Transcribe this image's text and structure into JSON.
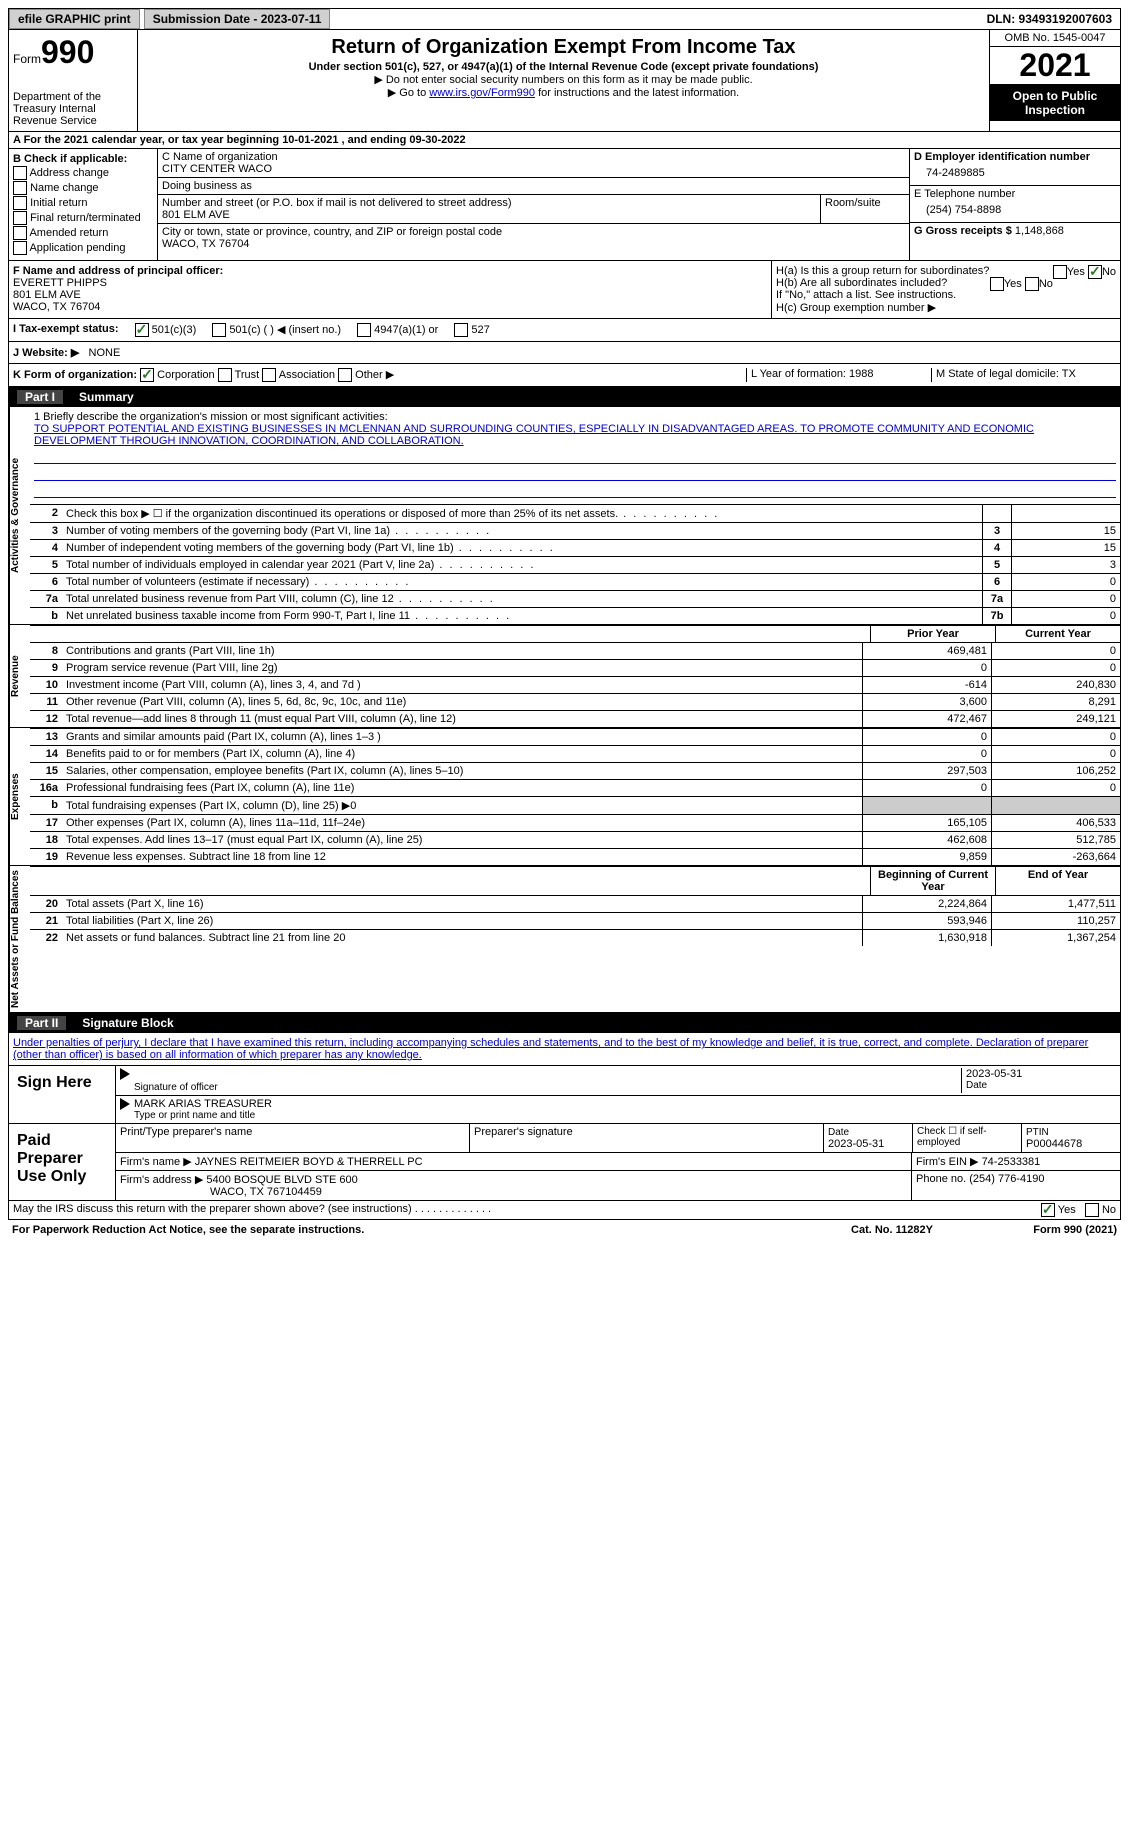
{
  "topbar": {
    "efile": "efile GRAPHIC print",
    "submission": "Submission Date - 2023-07-11",
    "dln": "DLN: 93493192007603"
  },
  "header": {
    "form_prefix": "Form",
    "form_number": "990",
    "dept": "Department of the Treasury Internal Revenue Service",
    "title": "Return of Organization Exempt From Income Tax",
    "subtitle": "Under section 501(c), 527, or 4947(a)(1) of the Internal Revenue Code (except private foundations)",
    "note1": "▶ Do not enter social security numbers on this form as it may be made public.",
    "note2_pre": "▶ Go to ",
    "note2_link": "www.irs.gov/Form990",
    "note2_post": " for instructions and the latest information.",
    "omb": "OMB No. 1545-0047",
    "year": "2021",
    "open": "Open to Public Inspection"
  },
  "row_a": "A For the 2021 calendar year, or tax year beginning 10-01-2021    , and ending 09-30-2022",
  "col_b": {
    "title": "B Check if applicable:",
    "items": [
      "Address change",
      "Name change",
      "Initial return",
      "Final return/terminated",
      "Amended return",
      "Application pending"
    ]
  },
  "col_c": {
    "name_label": "C Name of organization",
    "name": "CITY CENTER WACO",
    "dba_label": "Doing business as",
    "dba": "",
    "addr_label": "Number and street (or P.O. box if mail is not delivered to street address)",
    "addr": "801 ELM AVE",
    "room_label": "Room/suite",
    "city_label": "City or town, state or province, country, and ZIP or foreign postal code",
    "city": "WACO, TX  76704"
  },
  "col_d": {
    "ein_label": "D Employer identification number",
    "ein": "74-2489885",
    "phone_label": "E Telephone number",
    "phone": "(254) 754-8898",
    "gross_label": "G Gross receipts $",
    "gross": "1,148,868"
  },
  "sec_f": {
    "label": "F Name and address of principal officer:",
    "name": "EVERETT PHIPPS",
    "addr1": "801 ELM AVE",
    "addr2": "WACO, TX  76704"
  },
  "sec_h": {
    "ha": "H(a)  Is this a group return for subordinates?",
    "hb": "H(b)  Are all subordinates included?",
    "hb_note": "If \"No,\" attach a list. See instructions.",
    "hc": "H(c)  Group exemption number ▶"
  },
  "tax_status": {
    "label": "I  Tax-exempt status:",
    "opt1": "501(c)(3)",
    "opt2": "501(c) (  ) ◀ (insert no.)",
    "opt3": "4947(a)(1) or",
    "opt4": "527"
  },
  "website": {
    "label": "J  Website: ▶",
    "value": "NONE"
  },
  "row_k": {
    "label": "K Form of organization:",
    "opts": [
      "Corporation",
      "Trust",
      "Association",
      "Other ▶"
    ],
    "l": "L Year of formation: 1988",
    "m": "M State of legal domicile: TX"
  },
  "part1": {
    "num": "Part I",
    "title": "Summary"
  },
  "mission": {
    "q1": "1  Briefly describe the organization's mission or most significant activities:",
    "text": "TO SUPPORT POTENTIAL AND EXISTING BUSINESSES IN MCLENNAN AND SURROUNDING COUNTIES, ESPECIALLY IN DISADVANTAGED AREAS. TO PROMOTE COMMUNITY AND ECONOMIC DEVELOPMENT THROUGH INNOVATION, COORDINATION, AND COLLABORATION."
  },
  "gov_rows": [
    {
      "n": "2",
      "d": "Check this box ▶ ☐ if the organization discontinued its operations or disposed of more than 25% of its net assets.",
      "box": "",
      "v": ""
    },
    {
      "n": "3",
      "d": "Number of voting members of the governing body (Part VI, line 1a)",
      "box": "3",
      "v": "15"
    },
    {
      "n": "4",
      "d": "Number of independent voting members of the governing body (Part VI, line 1b)",
      "box": "4",
      "v": "15"
    },
    {
      "n": "5",
      "d": "Total number of individuals employed in calendar year 2021 (Part V, line 2a)",
      "box": "5",
      "v": "3"
    },
    {
      "n": "6",
      "d": "Total number of volunteers (estimate if necessary)",
      "box": "6",
      "v": "0"
    },
    {
      "n": "7a",
      "d": "Total unrelated business revenue from Part VIII, column (C), line 12",
      "box": "7a",
      "v": "0"
    },
    {
      "n": "b",
      "d": "Net unrelated business taxable income from Form 990-T, Part I, line 11",
      "box": "7b",
      "v": "0"
    }
  ],
  "col_headers": {
    "prior": "Prior Year",
    "current": "Current Year"
  },
  "revenue": {
    "label": "Revenue",
    "rows": [
      {
        "n": "8",
        "d": "Contributions and grants (Part VIII, line 1h)",
        "p": "469,481",
        "c": "0"
      },
      {
        "n": "9",
        "d": "Program service revenue (Part VIII, line 2g)",
        "p": "0",
        "c": "0"
      },
      {
        "n": "10",
        "d": "Investment income (Part VIII, column (A), lines 3, 4, and 7d )",
        "p": "-614",
        "c": "240,830"
      },
      {
        "n": "11",
        "d": "Other revenue (Part VIII, column (A), lines 5, 6d, 8c, 9c, 10c, and 11e)",
        "p": "3,600",
        "c": "8,291"
      },
      {
        "n": "12",
        "d": "Total revenue—add lines 8 through 11 (must equal Part VIII, column (A), line 12)",
        "p": "472,467",
        "c": "249,121"
      }
    ]
  },
  "expenses": {
    "label": "Expenses",
    "rows": [
      {
        "n": "13",
        "d": "Grants and similar amounts paid (Part IX, column (A), lines 1–3 )",
        "p": "0",
        "c": "0"
      },
      {
        "n": "14",
        "d": "Benefits paid to or for members (Part IX, column (A), line 4)",
        "p": "0",
        "c": "0"
      },
      {
        "n": "15",
        "d": "Salaries, other compensation, employee benefits (Part IX, column (A), lines 5–10)",
        "p": "297,503",
        "c": "106,252"
      },
      {
        "n": "16a",
        "d": "Professional fundraising fees (Part IX, column (A), line 11e)",
        "p": "0",
        "c": "0"
      },
      {
        "n": "b",
        "d": "Total fundraising expenses (Part IX, column (D), line 25) ▶0",
        "p": "",
        "c": "",
        "shaded": true
      },
      {
        "n": "17",
        "d": "Other expenses (Part IX, column (A), lines 11a–11d, 11f–24e)",
        "p": "165,105",
        "c": "406,533"
      },
      {
        "n": "18",
        "d": "Total expenses. Add lines 13–17 (must equal Part IX, column (A), line 25)",
        "p": "462,608",
        "c": "512,785"
      },
      {
        "n": "19",
        "d": "Revenue less expenses. Subtract line 18 from line 12",
        "p": "9,859",
        "c": "-263,664"
      }
    ]
  },
  "netassets": {
    "label": "Net Assets or Fund Balances",
    "hdr": {
      "p": "Beginning of Current Year",
      "c": "End of Year"
    },
    "rows": [
      {
        "n": "20",
        "d": "Total assets (Part X, line 16)",
        "p": "2,224,864",
        "c": "1,477,511"
      },
      {
        "n": "21",
        "d": "Total liabilities (Part X, line 26)",
        "p": "593,946",
        "c": "110,257"
      },
      {
        "n": "22",
        "d": "Net assets or fund balances. Subtract line 21 from line 20",
        "p": "1,630,918",
        "c": "1,367,254"
      }
    ]
  },
  "part2": {
    "num": "Part II",
    "title": "Signature Block"
  },
  "sig_decl": "Under penalties of perjury, I declare that I have examined this return, including accompanying schedules and statements, and to the best of my knowledge and belief, it is true, correct, and complete. Declaration of preparer (other than officer) is based on all information of which preparer has any knowledge.",
  "sign": {
    "title": "Sign Here",
    "sig_label": "Signature of officer",
    "date": "2023-05-31",
    "date_label": "Date",
    "name": "MARK ARIAS TREASURER",
    "name_label": "Type or print name and title"
  },
  "prep": {
    "title": "Paid Preparer Use Only",
    "h1": "Print/Type preparer's name",
    "h2": "Preparer's signature",
    "h3_label": "Date",
    "h3": "2023-05-31",
    "h4": "Check ☐ if self-employed",
    "h5_label": "PTIN",
    "h5": "P00044678",
    "firm_label": "Firm's name    ▶",
    "firm": "JAYNES REITMEIER BOYD & THERRELL PC",
    "ein_label": "Firm's EIN ▶",
    "ein": "74-2533381",
    "addr_label": "Firm's address ▶",
    "addr1": "5400 BOSQUE BLVD STE 600",
    "addr2": "WACO, TX  767104459",
    "phone_label": "Phone no.",
    "phone": "(254) 776-4190"
  },
  "footer": {
    "q": "May the IRS discuss this return with the preparer shown above? (see instructions)",
    "yes": "Yes",
    "no": "No"
  },
  "final": {
    "left": "For Paperwork Reduction Act Notice, see the separate instructions.",
    "mid": "Cat. No. 11282Y",
    "right": "Form 990 (2021)"
  }
}
